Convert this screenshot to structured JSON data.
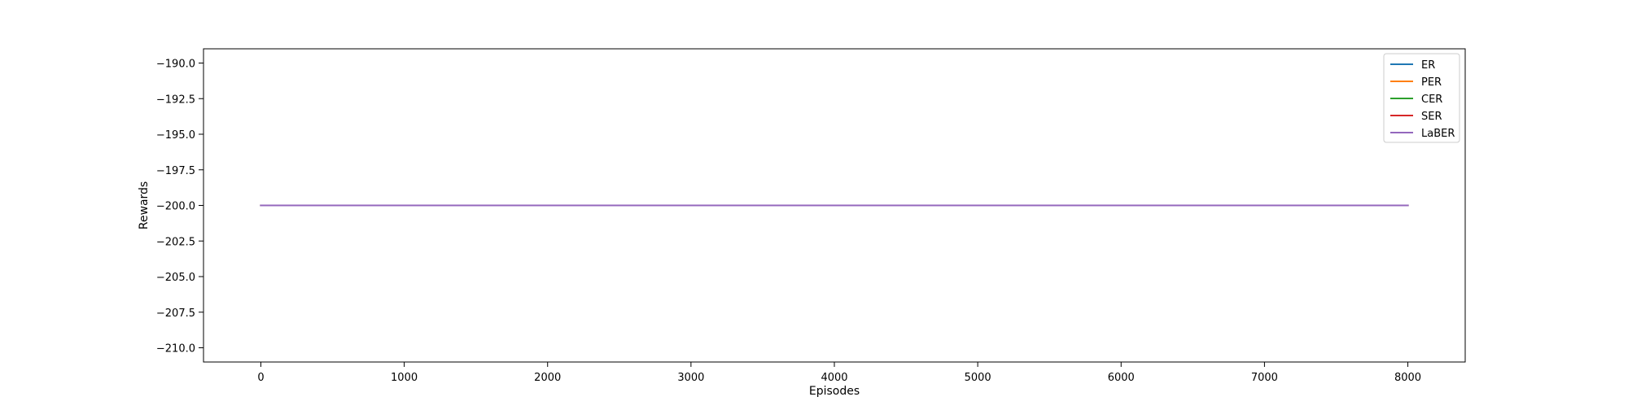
{
  "chart_data": {
    "type": "line",
    "title": "",
    "xlabel": "Episodes",
    "ylabel": "Rewards",
    "xlim": [
      -400,
      8400
    ],
    "ylim": [
      -211,
      -189
    ],
    "x_ticks": [
      0,
      1000,
      2000,
      3000,
      4000,
      5000,
      6000,
      7000,
      8000
    ],
    "x_tick_labels": [
      "0",
      "1000",
      "2000",
      "3000",
      "4000",
      "5000",
      "6000",
      "7000",
      "8000"
    ],
    "y_ticks": [
      -190.0,
      -192.5,
      -195.0,
      -197.5,
      -200.0,
      -202.5,
      -205.0,
      -207.5,
      -210.0
    ],
    "y_tick_labels": [
      "−190.0",
      "−192.5",
      "−195.0",
      "−197.5",
      "−200.0",
      "−202.5",
      "−205.0",
      "−207.5",
      "−210.0"
    ],
    "grid": false,
    "legend_position": "upper right",
    "series": [
      {
        "name": "ER",
        "color": "#1f77b4",
        "x": [
          0,
          8000
        ],
        "y": [
          -200,
          -200
        ]
      },
      {
        "name": "PER",
        "color": "#ff7f0e",
        "x": [
          0,
          8000
        ],
        "y": [
          -200,
          -200
        ]
      },
      {
        "name": "CER",
        "color": "#2ca02c",
        "x": [
          0,
          8000
        ],
        "y": [
          -200,
          -200
        ]
      },
      {
        "name": "SER",
        "color": "#d62728",
        "x": [
          0,
          8000
        ],
        "y": [
          -200,
          -200
        ]
      },
      {
        "name": "LaBER",
        "color": "#9467bd",
        "x": [
          0,
          8000
        ],
        "y": [
          -200,
          -200
        ]
      }
    ]
  }
}
